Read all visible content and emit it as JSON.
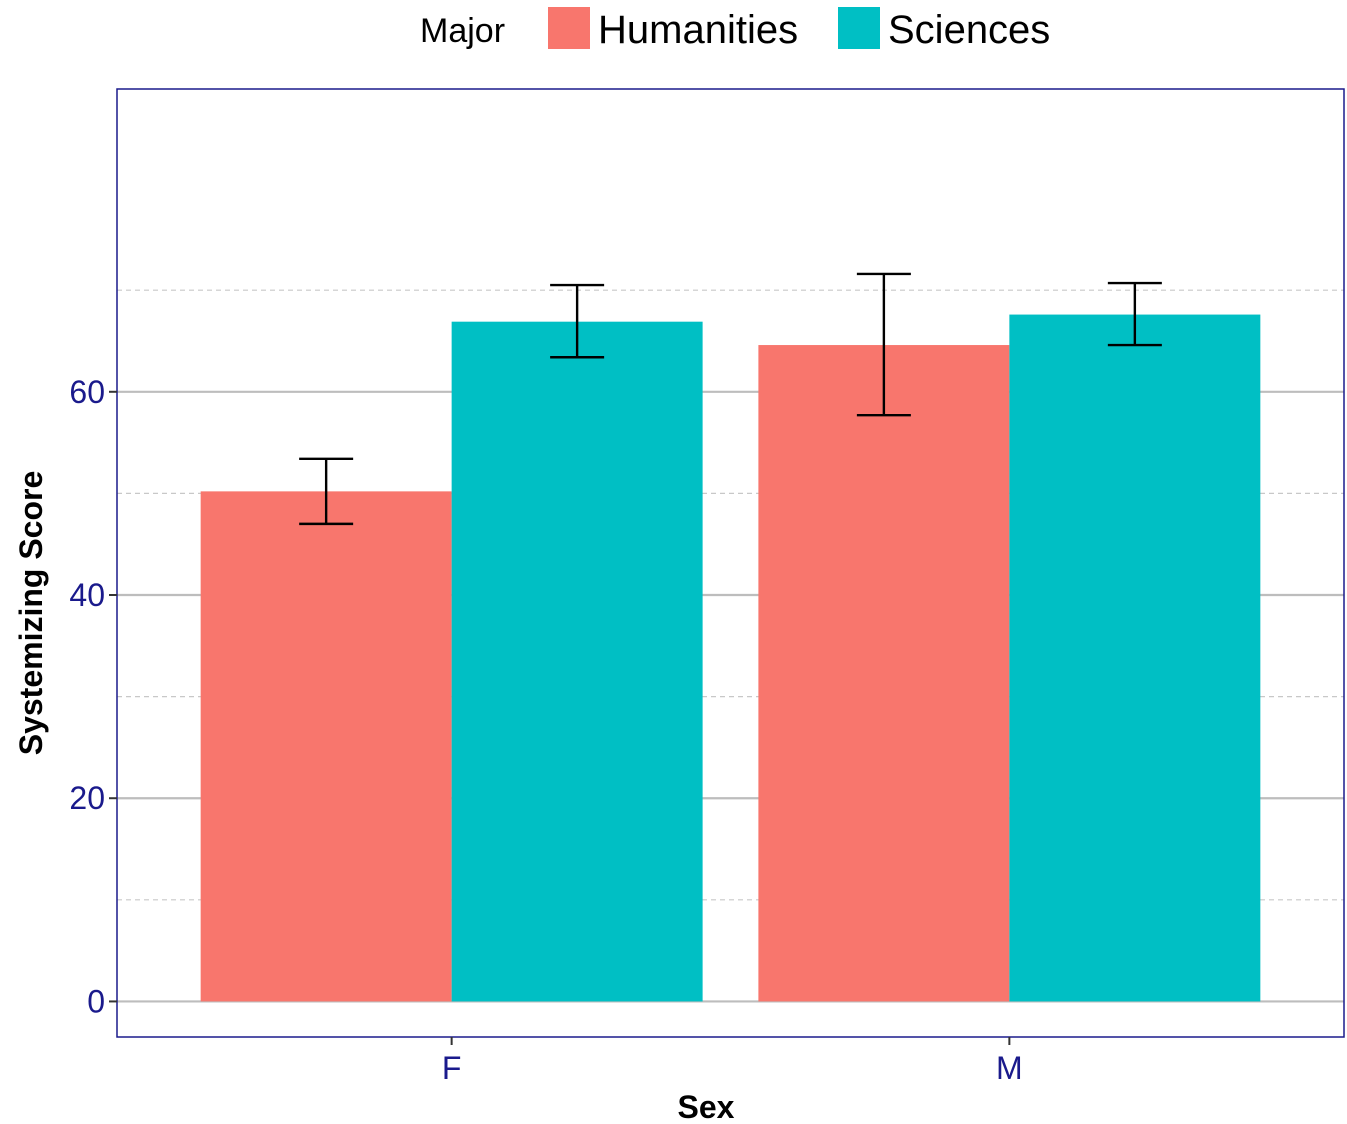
{
  "chart_data": {
    "type": "bar",
    "title": "",
    "xlabel": "Sex",
    "ylabel": "Systemizing Score",
    "categories": [
      "F",
      "M"
    ],
    "legend_title": "Major",
    "legend_position": "top",
    "series": [
      {
        "name": "Humanities",
        "color": "#F8766D",
        "values": [
          50.2,
          64.6
        ],
        "error_low": [
          47.0,
          57.7
        ],
        "error_high": [
          53.4,
          71.6
        ]
      },
      {
        "name": "Sciences",
        "color": "#00BFC4",
        "values": [
          66.9,
          67.6
        ],
        "error_low": [
          63.4,
          64.6
        ],
        "error_high": [
          70.5,
          70.7
        ]
      }
    ],
    "ylim": [
      -3.5,
      89.8
    ],
    "yticks": [
      0,
      20,
      40,
      60
    ],
    "ytick_labels": [
      "0",
      "20",
      "40",
      "60"
    ],
    "minor_gridlines": [
      10,
      30,
      50,
      70
    ],
    "grid": true,
    "panel_border_color": "#1a1a8c"
  }
}
